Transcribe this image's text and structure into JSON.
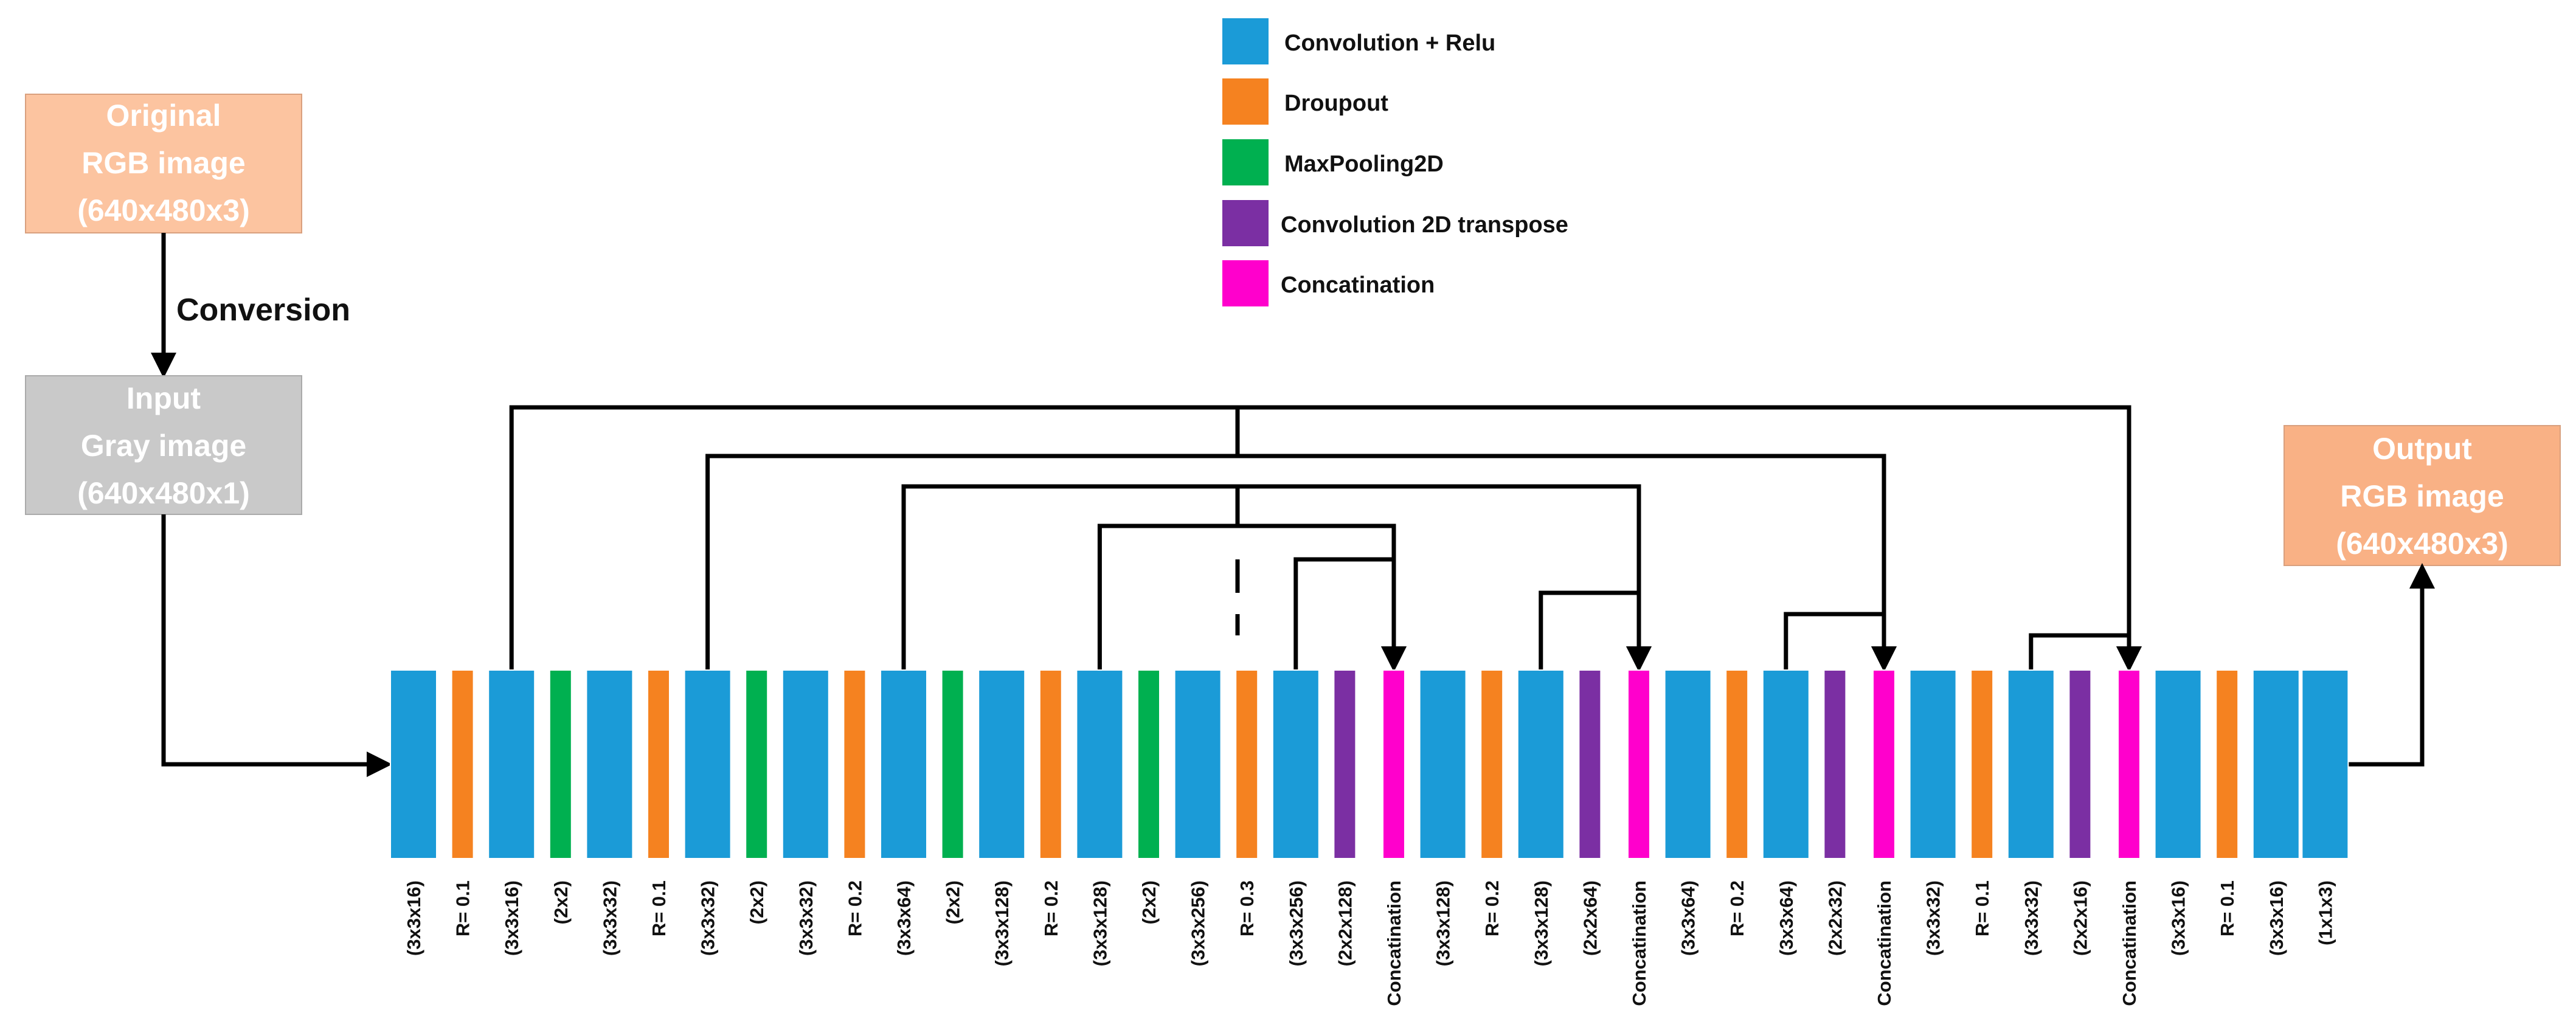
{
  "legend": [
    {
      "key": "conv",
      "label": "Convolution + Relu",
      "color": "#1b9bd7"
    },
    {
      "key": "drop",
      "label": "Droupout",
      "color": "#f58220"
    },
    {
      "key": "pool",
      "label": "MaxPooling2D",
      "color": "#00b050"
    },
    {
      "key": "trans",
      "label": "Convolution 2D transpose",
      "color": "#7b2fa3"
    },
    {
      "key": "concat",
      "label": "Concatination",
      "color": "#ff00cc"
    }
  ],
  "boxes": {
    "original": {
      "lines": [
        "Original",
        "RGB image",
        "(640x480x3)"
      ],
      "color": "#fcc4a0"
    },
    "input": {
      "lines": [
        "Input",
        "Gray image",
        "(640x480x1)"
      ],
      "color": "#c9c9c9"
    },
    "output": {
      "lines": [
        "Output",
        "RGB image",
        "(640x480x3)"
      ],
      "color": "#f9b185"
    }
  },
  "conversion_label": "Conversion",
  "layers": [
    {
      "type": "conv",
      "label": "(3x3x16)"
    },
    {
      "type": "drop",
      "label": "R= 0.1"
    },
    {
      "type": "conv",
      "label": "(3x3x16)"
    },
    {
      "type": "pool",
      "label": "(2x2)"
    },
    {
      "type": "conv",
      "label": "(3x3x32)"
    },
    {
      "type": "drop",
      "label": "R= 0.1"
    },
    {
      "type": "conv",
      "label": "(3x3x32)"
    },
    {
      "type": "pool",
      "label": "(2x2)"
    },
    {
      "type": "conv",
      "label": "(3x3x32)"
    },
    {
      "type": "drop",
      "label": "R= 0.2"
    },
    {
      "type": "conv",
      "label": "(3x3x64)"
    },
    {
      "type": "pool",
      "label": "(2x2)"
    },
    {
      "type": "conv",
      "label": "(3x3x128)"
    },
    {
      "type": "drop",
      "label": "R= 0.2"
    },
    {
      "type": "conv",
      "label": "(3x3x128)"
    },
    {
      "type": "pool",
      "label": "(2x2)"
    },
    {
      "type": "conv",
      "label": "(3x3x256)"
    },
    {
      "type": "drop",
      "label": "R= 0.3"
    },
    {
      "type": "conv",
      "label": "(3x3x256)"
    },
    {
      "type": "trans",
      "label": "(2x2x128)"
    },
    {
      "type": "concat",
      "label": "Concatination"
    },
    {
      "type": "conv",
      "label": "(3x3x128)"
    },
    {
      "type": "drop",
      "label": "R= 0.2"
    },
    {
      "type": "conv",
      "label": "(3x3x128)"
    },
    {
      "type": "trans",
      "label": "(2x2x64)"
    },
    {
      "type": "concat",
      "label": "Concatination"
    },
    {
      "type": "conv",
      "label": "(3x3x64)"
    },
    {
      "type": "drop",
      "label": "R= 0.2"
    },
    {
      "type": "conv",
      "label": "(3x3x64)"
    },
    {
      "type": "trans",
      "label": "(2x2x32)"
    },
    {
      "type": "concat",
      "label": "Concatination"
    },
    {
      "type": "conv",
      "label": "(3x3x32)"
    },
    {
      "type": "drop",
      "label": "R= 0.1"
    },
    {
      "type": "conv",
      "label": "(3x3x32)"
    },
    {
      "type": "trans",
      "label": "(2x2x16)"
    },
    {
      "type": "concat",
      "label": "Concatination"
    },
    {
      "type": "conv",
      "label": "(3x3x16)"
    },
    {
      "type": "drop",
      "label": "R= 0.1"
    },
    {
      "type": "conv",
      "label": "(3x3x16)"
    },
    {
      "type": "conv",
      "label": "(1x1x3)"
    }
  ],
  "skip_connections": [
    {
      "from": 2,
      "to": 35
    },
    {
      "from": 6,
      "to": 30
    },
    {
      "from": 10,
      "to": 25
    },
    {
      "from": 14,
      "to": 20
    },
    {
      "from": 18,
      "to": 20
    },
    {
      "from": 23,
      "to": 25
    },
    {
      "from": 28,
      "to": 30
    },
    {
      "from": 33,
      "to": 35
    }
  ]
}
